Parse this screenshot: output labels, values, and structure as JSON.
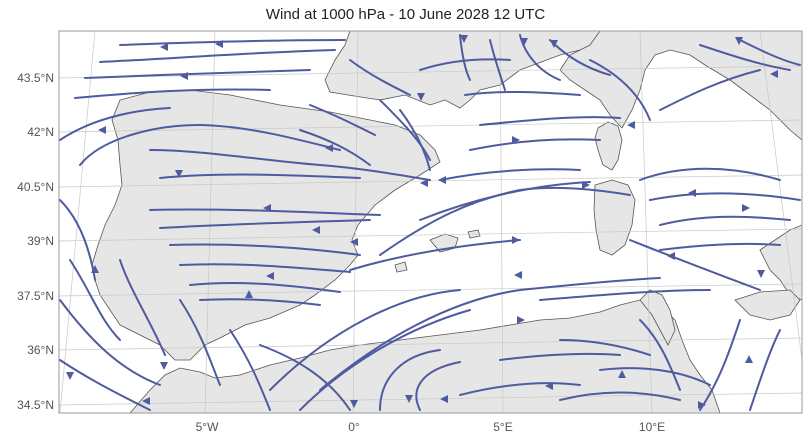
{
  "title": "Wind at 1000 hPa - 10 June 2028 12 UTC",
  "colors": {
    "stream": "#4f5b9f",
    "land": "#e6e6e6",
    "sea": "#ffffff",
    "coast": "#555555",
    "grid": "#c8c8c8"
  },
  "lat_labels": [
    "43.5°N",
    "42°N",
    "40.5°N",
    "39°N",
    "37.5°N",
    "36°N",
    "34.5°N"
  ],
  "lon_labels": [
    "5°W",
    "0°",
    "5°E",
    "10°E"
  ]
}
